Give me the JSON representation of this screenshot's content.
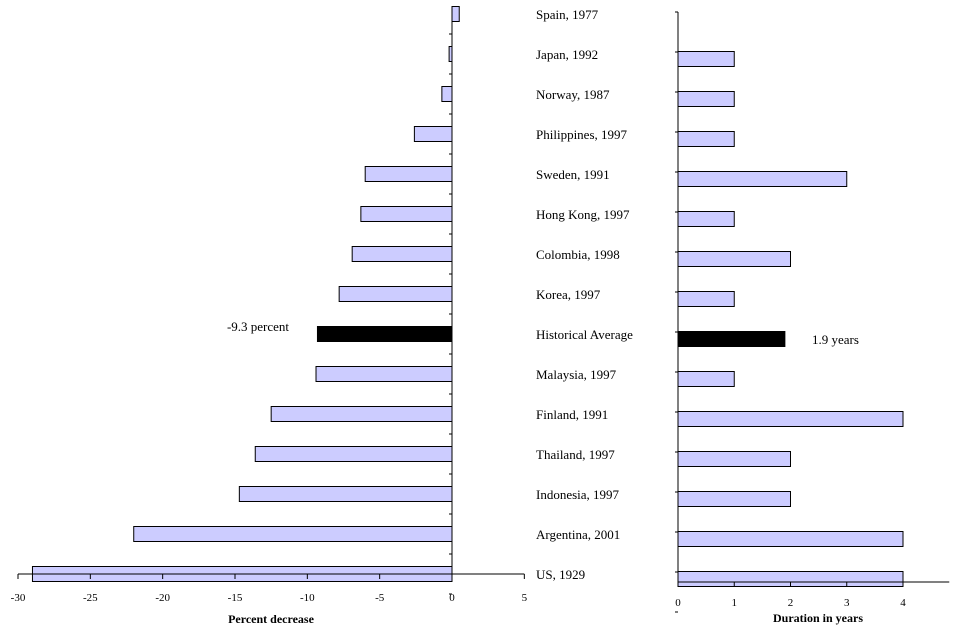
{
  "chart_data": [
    {
      "type": "bar",
      "orientation": "horizontal",
      "categories": [
        "Spain, 1977",
        "Japan, 1992",
        "Norway, 1987",
        "Philippines, 1997",
        "Sweden, 1991",
        "Hong Kong, 1997",
        "Colombia, 1998",
        "Korea, 1997",
        "Historical Average",
        "Malaysia, 1997",
        "Finland, 1991",
        "Thailand, 1997",
        "Indonesia, 1997",
        "Argentina, 2001",
        "US, 1929"
      ],
      "values": [
        0.5,
        -0.2,
        -0.7,
        -2.6,
        -6.0,
        -6.3,
        -6.9,
        -7.8,
        -9.3,
        -9.4,
        -12.5,
        -13.6,
        -14.7,
        -22.0,
        -29.0
      ],
      "highlight_category": "Historical Average",
      "xlabel": "Percent decrease",
      "xlim": [
        -30,
        5
      ],
      "xticks": [
        "-30",
        "-25",
        "-20",
        "-15",
        "-10",
        "-5",
        "0",
        "5"
      ],
      "annotation": "-9.3 percent",
      "bar_color": "#ccccff",
      "highlight_color": "#000000"
    },
    {
      "type": "bar",
      "orientation": "horizontal",
      "categories": [
        "Spain, 1977",
        "Japan, 1992",
        "Norway, 1987",
        "Philippines, 1997",
        "Sweden, 1991",
        "Hong Kong, 1997",
        "Colombia, 1998",
        "Korea, 1997",
        "Historical Average",
        "Malaysia, 1997",
        "Finland, 1991",
        "Thailand, 1997",
        "Indonesia, 1997",
        "Argentina, 2001",
        "US, 1929"
      ],
      "values": [
        0,
        1,
        1,
        1,
        3,
        1,
        2,
        1,
        1.9,
        1,
        4,
        2,
        2,
        4,
        4
      ],
      "highlight_category": "Historical Average",
      "xlabel": "Duration in years",
      "xlim": [
        0,
        5
      ],
      "xticks": [
        "0",
        "1",
        "2",
        "3",
        "4"
      ],
      "annotation": "1.9 years",
      "bar_color": "#ccccff",
      "highlight_color": "#000000"
    }
  ]
}
